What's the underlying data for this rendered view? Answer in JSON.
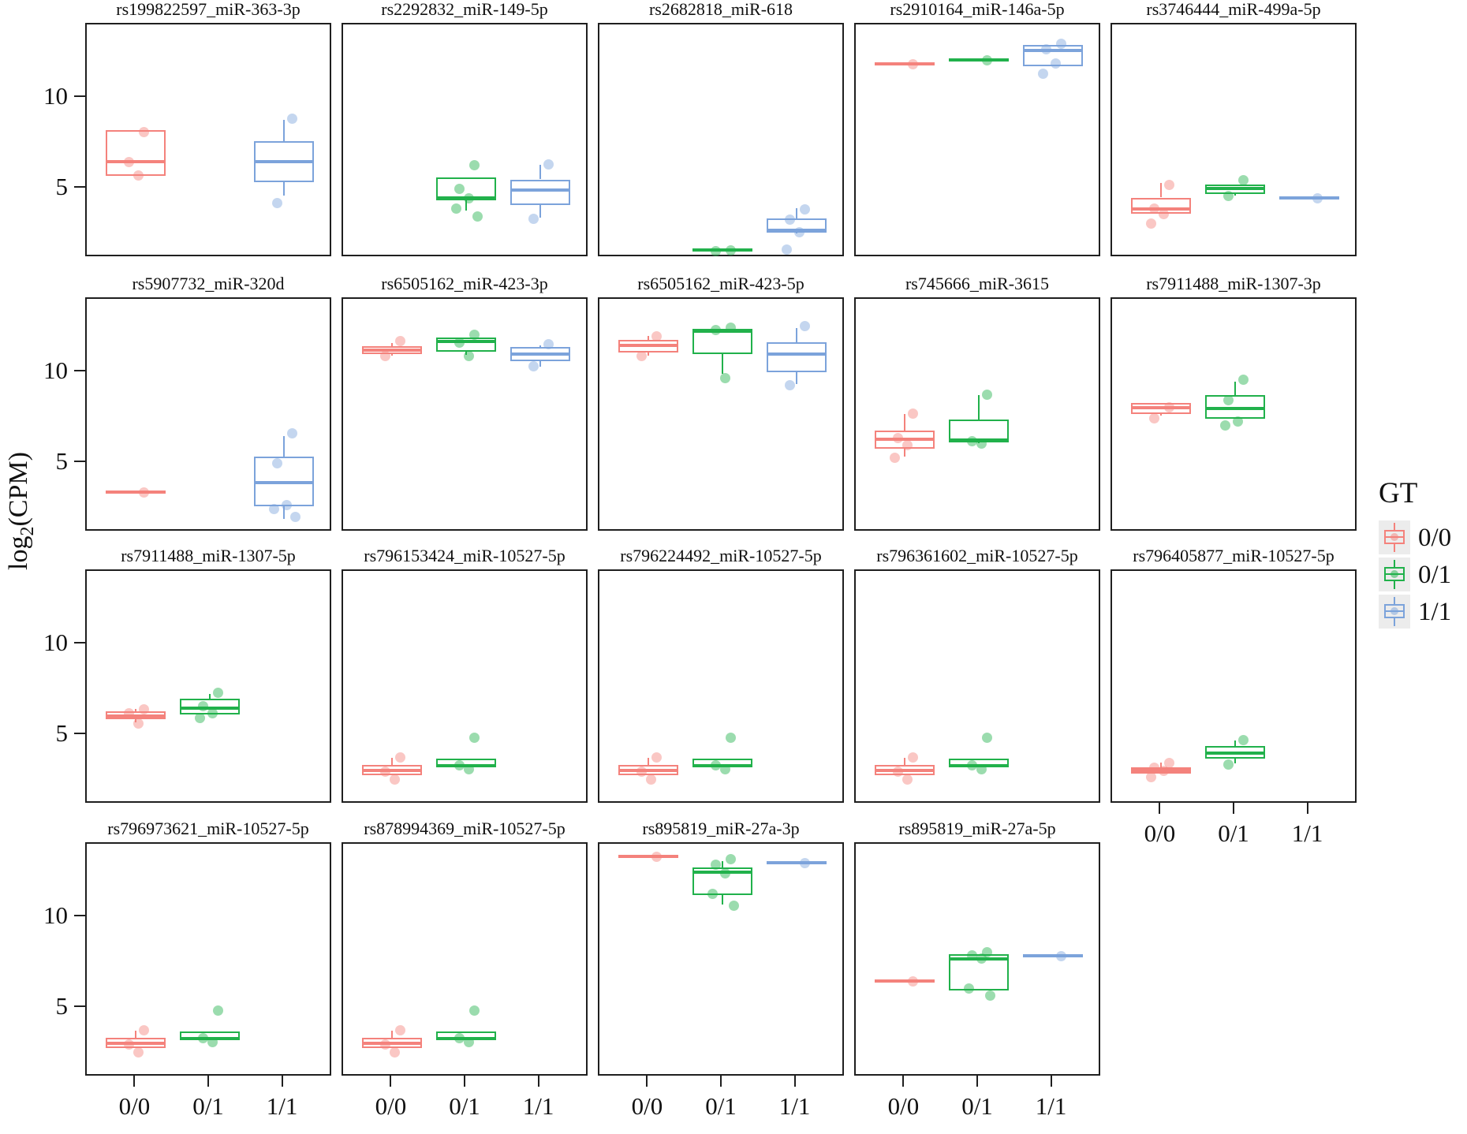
{
  "figure_title": "",
  "axis": {
    "y_label_pre": "log",
    "y_label_sub": "2",
    "y_label_post": "(CPM)",
    "y_label_full": "log2(CPM)",
    "y_tick_labels": [
      "10",
      "5"
    ],
    "x_tick_labels": [
      "0/0",
      "0/1",
      "1/1"
    ]
  },
  "legend": {
    "title": "GT",
    "entries": [
      {
        "label": "0/0",
        "color": "#F4827C"
      },
      {
        "label": "0/1",
        "color": "#21B14B"
      },
      {
        "label": "1/1",
        "color": "#7CA3DB"
      }
    ]
  },
  "colors": {
    "gt_0_0": "#F4827C",
    "gt_0_1": "#21B14B",
    "gt_1_1": "#7CA3DB",
    "panel_border": "#1f1f1f",
    "text": "#111111",
    "legend_key_bg": "#ececec"
  },
  "chart_data": {
    "type": "boxplot",
    "xlabel": "GT",
    "ylabel": "log2(CPM)",
    "categories": [
      "0/0",
      "0/1",
      "1/1"
    ],
    "yticks": [
      5,
      10
    ],
    "ylim": [
      1.2,
      14.0
    ],
    "grid": false,
    "legend_position": "right",
    "panels": [
      {
        "title": "rs199822597_miR-363-3p",
        "boxes": [
          {
            "gt": "0/0",
            "lo": 5.7,
            "q1": 5.7,
            "median": 6.5,
            "q3": 8.2,
            "hi": 8.2,
            "points": [
              8.15,
              6.5,
              5.75
            ]
          },
          {
            "gt": "1/1",
            "lo": 4.6,
            "q1": 5.35,
            "median": 6.5,
            "q3": 7.6,
            "hi": 8.8,
            "points": [
              8.85,
              4.2
            ]
          }
        ]
      },
      {
        "title": "rs2292832_miR-149-5p",
        "boxes": [
          {
            "gt": "0/1",
            "lo": 3.8,
            "q1": 4.35,
            "median": 4.5,
            "q3": 5.6,
            "hi": 5.6,
            "points": [
              6.3,
              5.0,
              4.5,
              3.9,
              3.5
            ]
          },
          {
            "gt": "1/1",
            "lo": 3.4,
            "q1": 4.1,
            "median": 4.9,
            "q3": 5.5,
            "hi": 6.3,
            "points": [
              6.35,
              3.35
            ]
          }
        ]
      },
      {
        "title": "rs2682818_miR-618",
        "boxes": [
          {
            "gt": "0/1",
            "lo": 1.6,
            "q1": 1.6,
            "median": 1.6,
            "q3": 1.6,
            "hi": 1.6,
            "points": [
              1.62,
              1.58
            ]
          },
          {
            "gt": "1/1",
            "lo": 2.5,
            "q1": 2.55,
            "median": 2.7,
            "q3": 3.35,
            "hi": 3.9,
            "points": [
              3.85,
              3.3,
              2.6,
              1.65
            ]
          }
        ]
      },
      {
        "title": "rs2910164_miR-146a-5p",
        "boxes": [
          {
            "gt": "0/0",
            "lo": 11.85,
            "q1": 11.85,
            "median": 11.85,
            "q3": 11.85,
            "hi": 11.85,
            "points": [
              11.85
            ]
          },
          {
            "gt": "0/1",
            "lo": 12.1,
            "q1": 12.1,
            "median": 12.1,
            "q3": 12.1,
            "hi": 12.1,
            "points": [
              12.1
            ]
          },
          {
            "gt": "1/1",
            "lo": 11.75,
            "q1": 11.75,
            "median": 12.6,
            "q3": 12.9,
            "hi": 12.9,
            "points": [
              13.0,
              12.7,
              11.9,
              11.35
            ]
          }
        ]
      },
      {
        "title": "rs3746444_miR-499a-5p",
        "boxes": [
          {
            "gt": "0/0",
            "lo": 3.6,
            "q1": 3.6,
            "median": 3.85,
            "q3": 4.5,
            "hi": 5.3,
            "points": [
              5.2,
              3.9,
              3.6,
              3.1
            ]
          },
          {
            "gt": "0/1",
            "lo": 4.6,
            "q1": 4.7,
            "median": 5.0,
            "q3": 5.2,
            "hi": 5.2,
            "points": [
              5.5,
              4.6
            ]
          },
          {
            "gt": "1/1",
            "lo": 4.5,
            "q1": 4.5,
            "median": 4.5,
            "q3": 4.5,
            "hi": 4.5,
            "points": [
              4.5
            ]
          }
        ]
      },
      {
        "title": "rs5907732_miR-320d",
        "boxes": [
          {
            "gt": "0/0",
            "lo": 3.4,
            "q1": 3.4,
            "median": 3.4,
            "q3": 3.4,
            "hi": 3.4,
            "points": [
              3.4
            ]
          },
          {
            "gt": "1/1",
            "lo": 1.9,
            "q1": 2.6,
            "median": 3.9,
            "q3": 5.35,
            "hi": 6.5,
            "points": [
              6.65,
              5.0,
              2.7,
              2.5,
              2.05
            ]
          }
        ]
      },
      {
        "title": "rs6505162_miR-423-3p",
        "boxes": [
          {
            "gt": "0/0",
            "lo": 10.9,
            "q1": 11.0,
            "median": 11.2,
            "q3": 11.45,
            "hi": 11.6,
            "points": [
              11.75,
              10.9
            ]
          },
          {
            "gt": "0/1",
            "lo": 10.95,
            "q1": 11.15,
            "median": 11.7,
            "q3": 11.9,
            "hi": 11.9,
            "points": [
              12.1,
              11.65,
              10.9
            ]
          },
          {
            "gt": "1/1",
            "lo": 10.3,
            "q1": 10.6,
            "median": 11.0,
            "q3": 11.4,
            "hi": 11.5,
            "points": [
              11.55,
              10.35
            ]
          }
        ]
      },
      {
        "title": "rs6505162_miR-423-5p",
        "boxes": [
          {
            "gt": "0/0",
            "lo": 10.9,
            "q1": 11.1,
            "median": 11.5,
            "q3": 11.8,
            "hi": 12.0,
            "points": [
              12.0,
              10.9
            ]
          },
          {
            "gt": "0/1",
            "lo": 9.9,
            "q1": 11.0,
            "median": 12.25,
            "q3": 12.4,
            "hi": 12.4,
            "points": [
              12.5,
              12.35,
              9.7
            ]
          },
          {
            "gt": "1/1",
            "lo": 9.35,
            "q1": 10.0,
            "median": 11.0,
            "q3": 11.65,
            "hi": 12.45,
            "points": [
              12.55,
              9.3
            ]
          }
        ]
      },
      {
        "title": "rs745666_miR-3615",
        "boxes": [
          {
            "gt": "0/0",
            "lo": 5.35,
            "q1": 5.8,
            "median": 6.3,
            "q3": 6.8,
            "hi": 7.7,
            "points": [
              7.75,
              6.4,
              6.0,
              5.3
            ]
          },
          {
            "gt": "0/1",
            "lo": 6.1,
            "q1": 6.15,
            "median": 6.25,
            "q3": 7.4,
            "hi": 8.75,
            "points": [
              8.8,
              6.2,
              6.1
            ]
          }
        ]
      },
      {
        "title": "rs7911488_miR-1307-3p",
        "boxes": [
          {
            "gt": "0/0",
            "lo": 7.6,
            "q1": 7.7,
            "median": 8.05,
            "q3": 8.3,
            "hi": 8.3,
            "points": [
              8.1,
              7.5
            ]
          },
          {
            "gt": "0/1",
            "lo": 7.45,
            "q1": 7.45,
            "median": 8.0,
            "q3": 8.75,
            "hi": 9.5,
            "points": [
              9.6,
              8.5,
              7.3,
              7.1
            ]
          }
        ]
      },
      {
        "title": "rs7911488_miR-1307-5p",
        "boxes": [
          {
            "gt": "0/0",
            "lo": 5.7,
            "q1": 5.85,
            "median": 6.05,
            "q3": 6.3,
            "hi": 6.45,
            "points": [
              6.45,
              6.2,
              5.65
            ]
          },
          {
            "gt": "0/1",
            "lo": 6.15,
            "q1": 6.15,
            "median": 6.5,
            "q3": 7.0,
            "hi": 7.25,
            "points": [
              7.35,
              6.6,
              6.2,
              5.95
            ]
          }
        ]
      },
      {
        "title": "rs796153424_miR-10527-5p",
        "boxes": [
          {
            "gt": "0/0",
            "lo": 2.8,
            "q1": 2.8,
            "median": 3.05,
            "q3": 3.35,
            "hi": 3.75,
            "points": [
              3.8,
              3.0,
              2.55
            ]
          },
          {
            "gt": "0/1",
            "lo": 3.2,
            "q1": 3.2,
            "median": 3.3,
            "q3": 3.7,
            "hi": 3.7,
            "points": [
              4.85,
              3.35,
              3.15
            ]
          }
        ]
      },
      {
        "title": "rs796224492_miR-10527-5p",
        "boxes": [
          {
            "gt": "0/0",
            "lo": 2.8,
            "q1": 2.8,
            "median": 3.05,
            "q3": 3.35,
            "hi": 3.75,
            "points": [
              3.8,
              3.0,
              2.55
            ]
          },
          {
            "gt": "0/1",
            "lo": 3.2,
            "q1": 3.2,
            "median": 3.3,
            "q3": 3.7,
            "hi": 3.7,
            "points": [
              4.85,
              3.35,
              3.15
            ]
          }
        ]
      },
      {
        "title": "rs796361602_miR-10527-5p",
        "boxes": [
          {
            "gt": "0/0",
            "lo": 2.8,
            "q1": 2.8,
            "median": 3.05,
            "q3": 3.35,
            "hi": 3.75,
            "points": [
              3.8,
              3.0,
              2.55
            ]
          },
          {
            "gt": "0/1",
            "lo": 3.2,
            "q1": 3.2,
            "median": 3.3,
            "q3": 3.7,
            "hi": 3.7,
            "points": [
              4.85,
              3.35,
              3.15
            ]
          }
        ]
      },
      {
        "title": "rs796405877_miR-10527-5p",
        "boxes": [
          {
            "gt": "0/0",
            "lo": 2.85,
            "q1": 2.85,
            "median": 3.05,
            "q3": 3.2,
            "hi": 3.5,
            "points": [
              3.5,
              3.2,
              3.05,
              2.7
            ]
          },
          {
            "gt": "0/1",
            "lo": 3.45,
            "q1": 3.7,
            "median": 4.0,
            "q3": 4.4,
            "hi": 4.7,
            "points": [
              4.75,
              3.4
            ]
          }
        ]
      },
      {
        "title": "rs796973621_miR-10527-5p",
        "boxes": [
          {
            "gt": "0/0",
            "lo": 2.8,
            "q1": 2.8,
            "median": 3.05,
            "q3": 3.35,
            "hi": 3.75,
            "points": [
              3.8,
              3.0,
              2.55
            ]
          },
          {
            "gt": "0/1",
            "lo": 3.2,
            "q1": 3.2,
            "median": 3.3,
            "q3": 3.7,
            "hi": 3.7,
            "points": [
              4.85,
              3.35,
              3.15
            ]
          }
        ]
      },
      {
        "title": "rs878994369_miR-10527-5p",
        "boxes": [
          {
            "gt": "0/0",
            "lo": 2.8,
            "q1": 2.8,
            "median": 3.05,
            "q3": 3.35,
            "hi": 3.75,
            "points": [
              3.8,
              3.0,
              2.55
            ]
          },
          {
            "gt": "0/1",
            "lo": 3.2,
            "q1": 3.2,
            "median": 3.3,
            "q3": 3.7,
            "hi": 3.7,
            "points": [
              4.85,
              3.35,
              3.15
            ]
          }
        ]
      },
      {
        "title": "rs895819_miR-27a-3p",
        "boxes": [
          {
            "gt": "0/0",
            "lo": 13.35,
            "q1": 13.35,
            "median": 13.35,
            "q3": 13.35,
            "hi": 13.35,
            "points": [
              13.35
            ]
          },
          {
            "gt": "0/1",
            "lo": 10.7,
            "q1": 11.2,
            "median": 12.5,
            "q3": 12.75,
            "hi": 13.1,
            "points": [
              13.2,
              12.9,
              12.45,
              11.3,
              10.65
            ]
          },
          {
            "gt": "1/1",
            "lo": 13.0,
            "q1": 13.0,
            "median": 13.0,
            "q3": 13.0,
            "hi": 13.0,
            "points": [
              13.0
            ]
          }
        ]
      },
      {
        "title": "rs895819_miR-27a-5p",
        "boxes": [
          {
            "gt": "0/0",
            "lo": 6.5,
            "q1": 6.5,
            "median": 6.5,
            "q3": 6.5,
            "hi": 6.5,
            "points": [
              6.5
            ]
          },
          {
            "gt": "0/1",
            "lo": 5.95,
            "q1": 5.95,
            "median": 7.7,
            "q3": 7.95,
            "hi": 7.95,
            "points": [
              8.1,
              7.9,
              7.75,
              6.1,
              5.7
            ]
          },
          {
            "gt": "1/1",
            "lo": 7.85,
            "q1": 7.85,
            "median": 7.85,
            "q3": 7.85,
            "hi": 7.85,
            "points": [
              7.85
            ]
          }
        ]
      }
    ]
  }
}
